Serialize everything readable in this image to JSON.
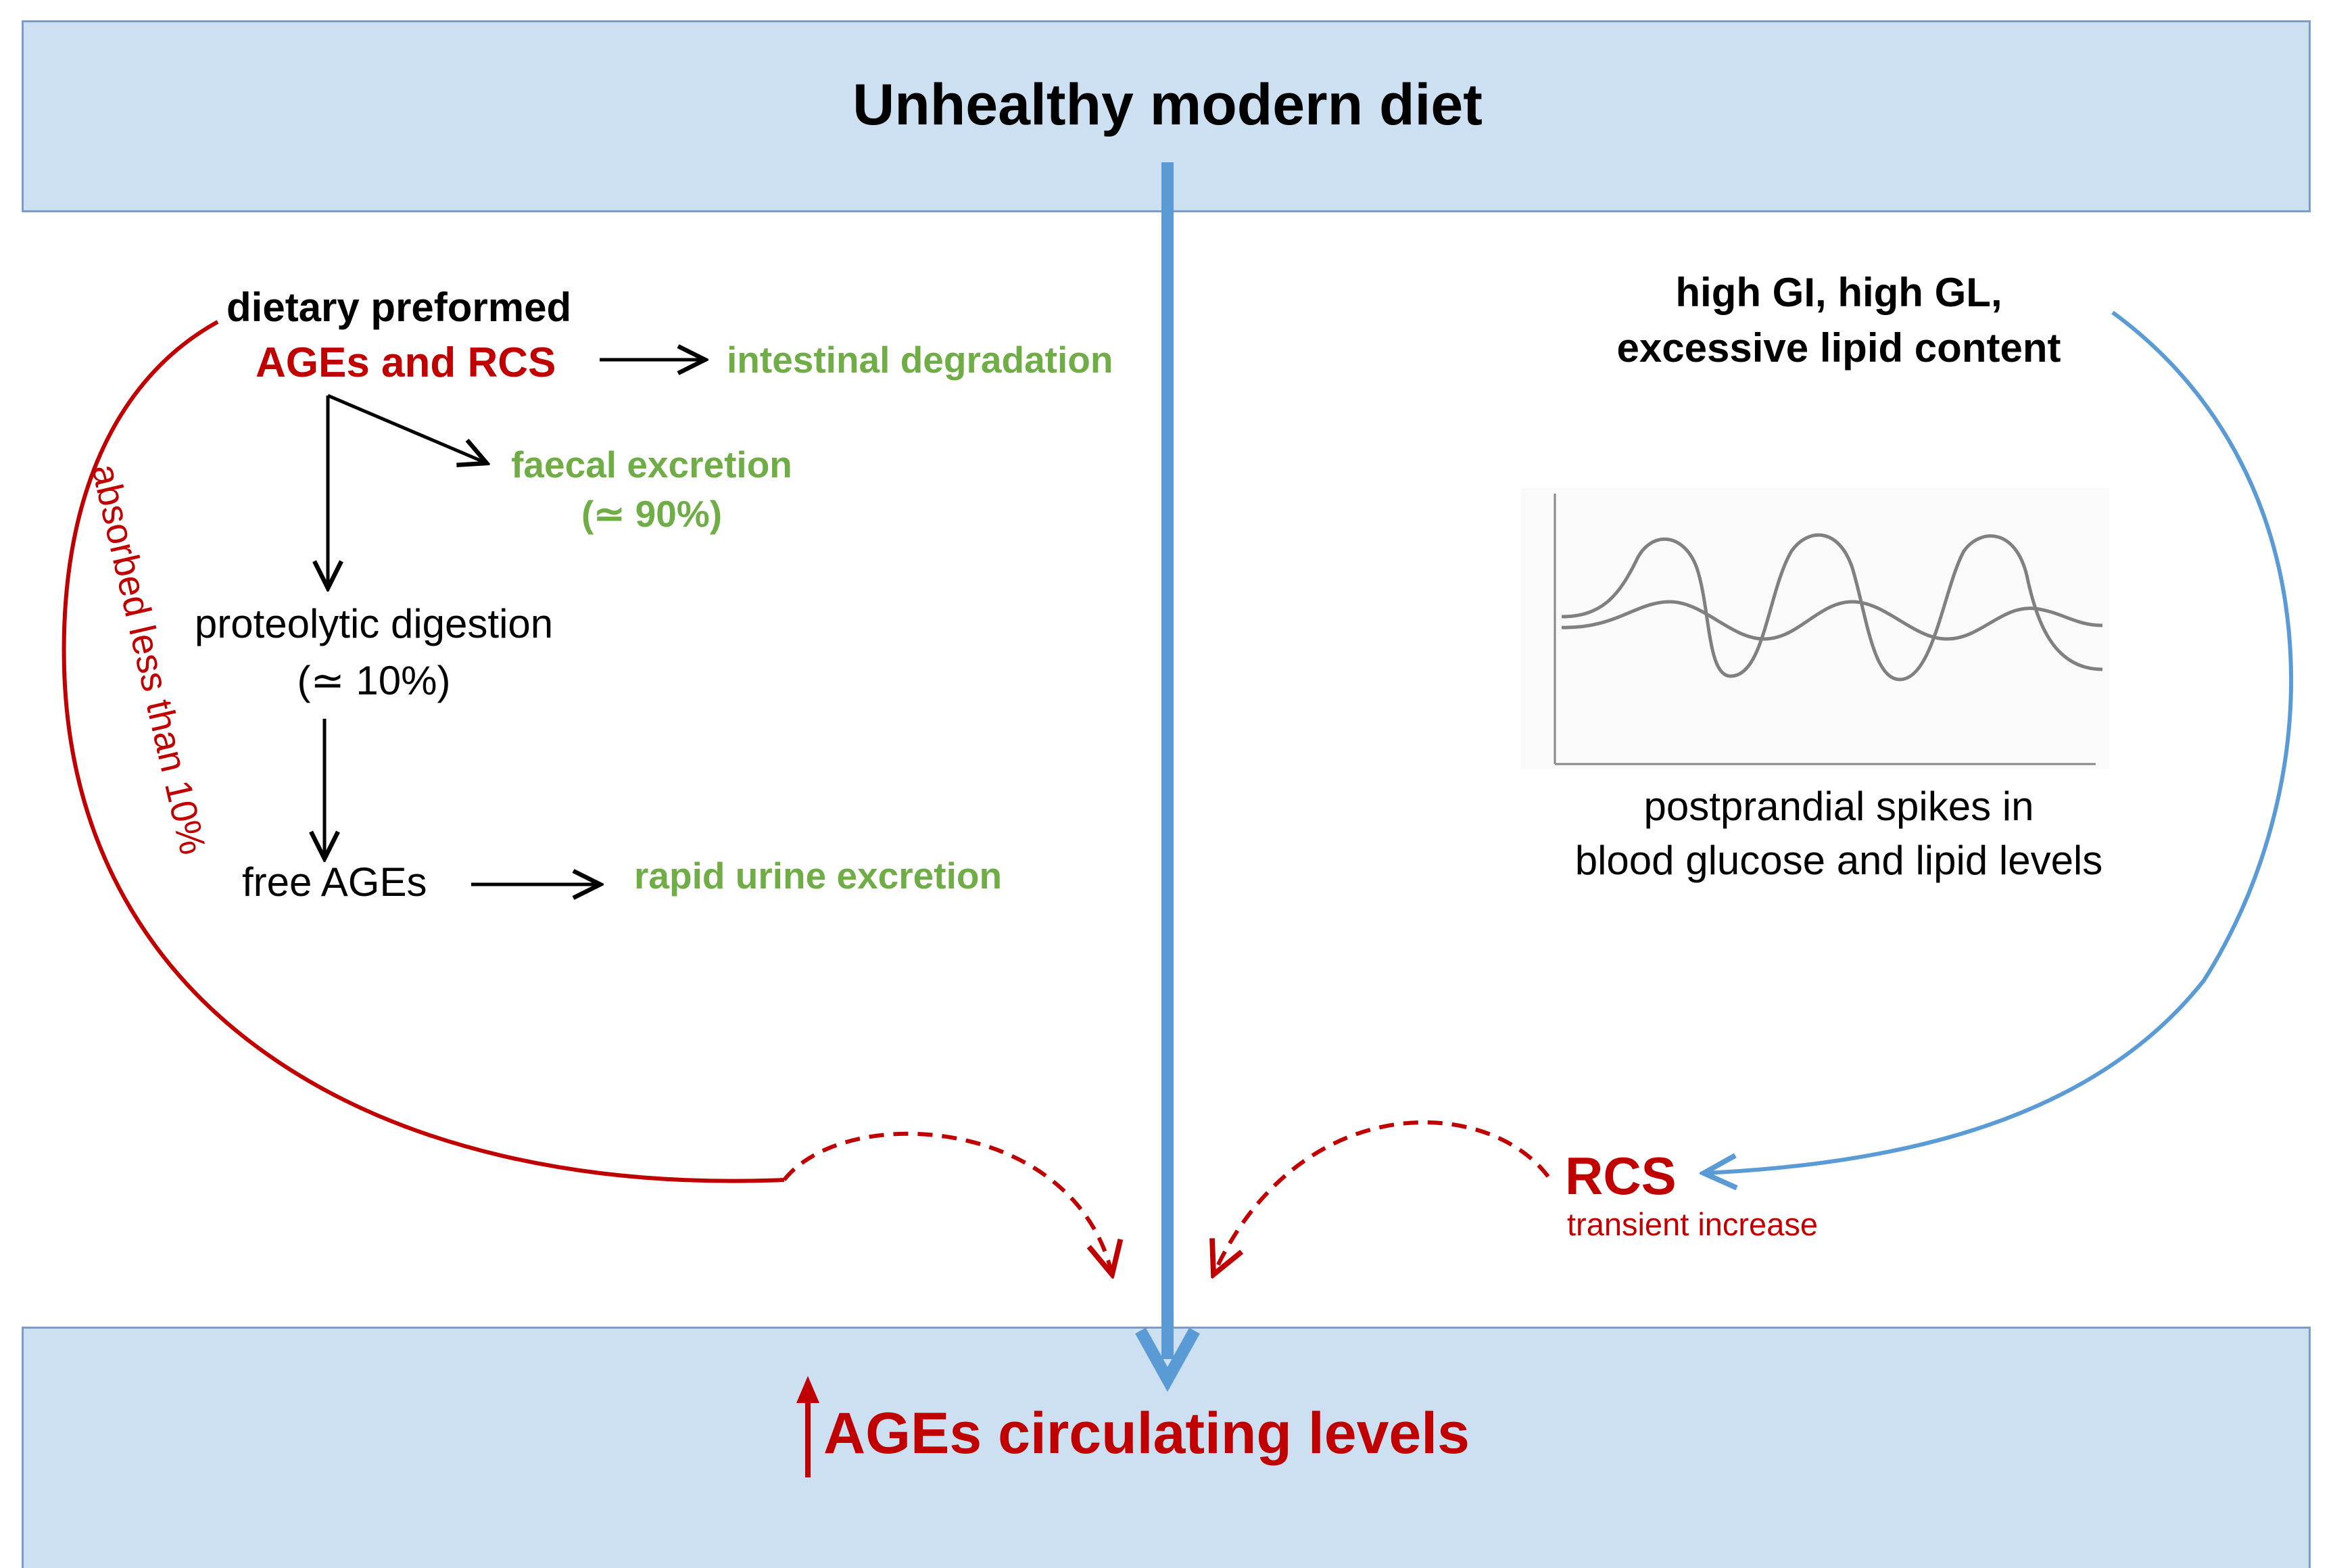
{
  "top_box": {
    "title": "Unhealthy modern diet"
  },
  "bottom_box": {
    "title": "AGEs circulating levels"
  },
  "left_path": {
    "source_line1": "dietary preformed",
    "source_line2": "AGEs and RCS",
    "intestinal": "intestinal degradation",
    "faecal": "faecal excretion",
    "faecal_pct": "(≃ 90%)",
    "proteolytic": "proteolytic digestion",
    "proteolytic_pct": "(≃ 10%)",
    "free_ages": "free AGEs",
    "urine": "rapid urine excretion",
    "absorbed": "absorbed less than 10%"
  },
  "right_path": {
    "source_line1": "high GI, high GL,",
    "source_line2": "excessive lipid content",
    "graph_caption_line1": "postprandial spikes in",
    "graph_caption_line2": "blood glucose and lipid levels",
    "rcs": "RCS",
    "rcs_note": "transient increase"
  },
  "colors": {
    "box_fill": "#cce0f1",
    "box_border": "#7a9cc6",
    "blue_arrow": "#5b9bd5",
    "red": "#c00000",
    "green": "#70ad47",
    "graph_line": "#808080"
  }
}
